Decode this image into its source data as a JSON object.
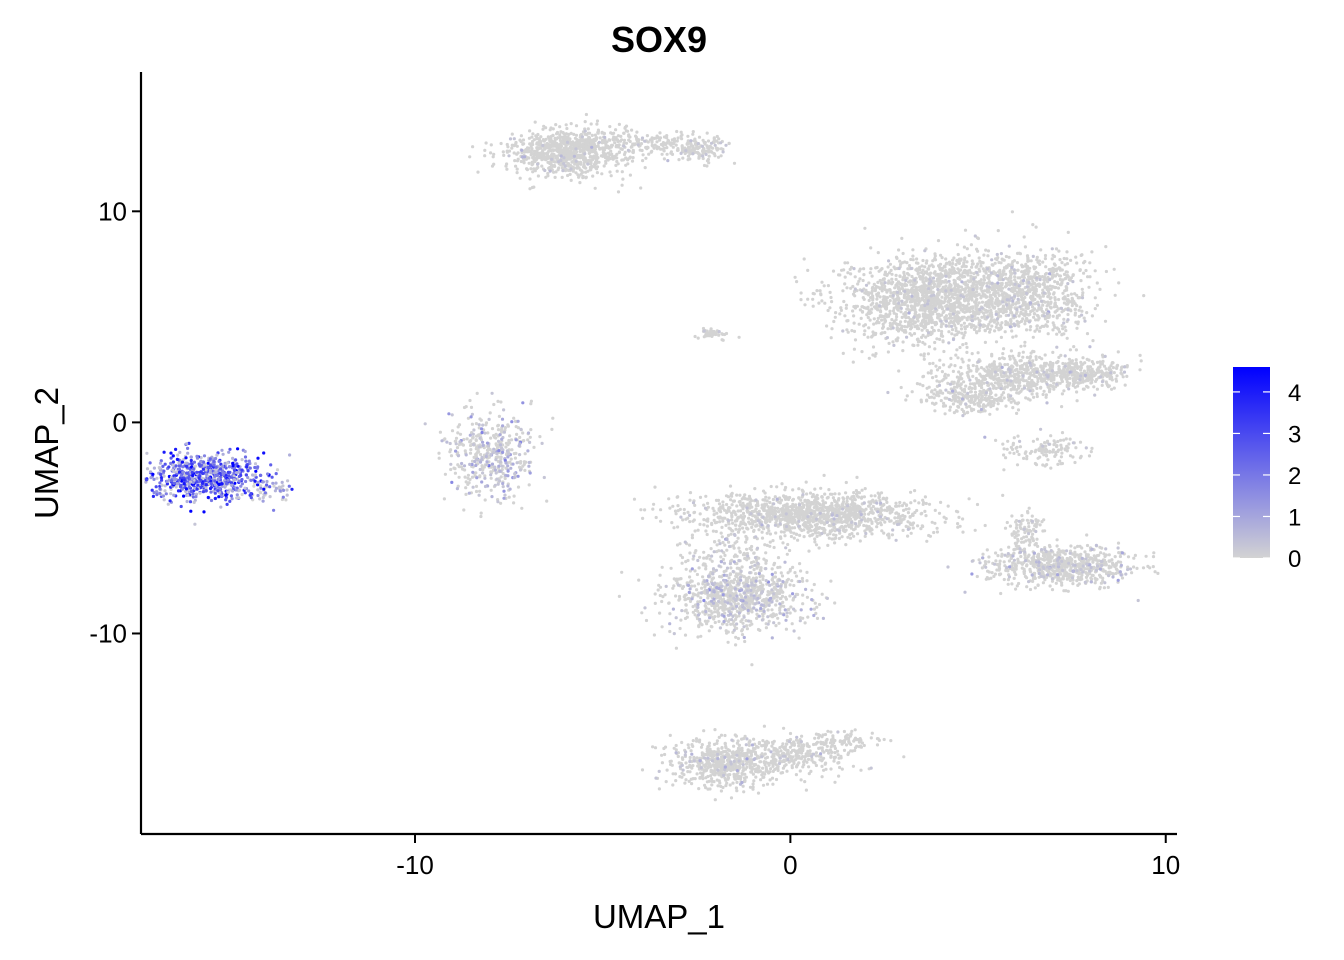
{
  "chart_data": {
    "type": "scatter",
    "title": "SOX9",
    "xlabel": "UMAP_1",
    "ylabel": "UMAP_2",
    "xlim": [
      -17.3,
      10.3
    ],
    "ylim": [
      -19.5,
      16.6
    ],
    "x_ticks": [
      -10,
      0,
      10
    ],
    "y_ticks": [
      -10,
      0,
      10
    ],
    "x_tick_labels": [
      "-10",
      "0",
      "10"
    ],
    "y_tick_labels": [
      "-10",
      "0",
      "10"
    ],
    "grid": false,
    "legend": {
      "placement": "right",
      "type": "colorbar",
      "ticks": [
        0,
        1,
        2,
        3,
        4
      ],
      "tick_labels": [
        "0",
        "1",
        "2",
        "3",
        "4"
      ],
      "min": 0,
      "max": 4.6,
      "low_color": "#d3d3d3",
      "high_color": "#0000ff"
    },
    "point_color_base": "#d3d3d3",
    "clusters": [
      {
        "cx": -15.6,
        "cy": -2.6,
        "sx": 0.75,
        "sy": 0.55,
        "n": 700,
        "expr": 2.2
      },
      {
        "cx": -14.0,
        "cy": -3.2,
        "sx": 0.4,
        "sy": 0.3,
        "n": 60,
        "expr": 1.0
      },
      {
        "cx": -8.0,
        "cy": -1.5,
        "sx": 0.6,
        "sy": 1.0,
        "n": 450,
        "expr": 0.45
      },
      {
        "cx": -5.9,
        "cy": 12.8,
        "sx": 0.8,
        "sy": 0.55,
        "n": 900,
        "expr": 0.03
      },
      {
        "cx": -3.8,
        "cy": 13.2,
        "sx": 0.9,
        "sy": 0.3,
        "n": 180,
        "expr": 0.03
      },
      {
        "cx": -2.4,
        "cy": 12.9,
        "sx": 0.35,
        "sy": 0.3,
        "n": 120,
        "expr": 0.05
      },
      {
        "cx": -2.0,
        "cy": 4.2,
        "sx": 0.25,
        "sy": 0.15,
        "n": 40,
        "expr": 0.03
      },
      {
        "cx": 3.8,
        "cy": 5.8,
        "sx": 1.2,
        "sy": 1.0,
        "n": 1600,
        "expr": 0.05
      },
      {
        "cx": 6.3,
        "cy": 6.2,
        "sx": 0.9,
        "sy": 1.0,
        "n": 800,
        "expr": 0.08
      },
      {
        "cx": 6.2,
        "cy": 2.2,
        "sx": 1.1,
        "sy": 0.5,
        "n": 600,
        "expr": 0.08
      },
      {
        "cx": 7.8,
        "cy": 2.4,
        "sx": 0.6,
        "sy": 0.3,
        "n": 200,
        "expr": 0.05
      },
      {
        "cx": 4.8,
        "cy": 1.2,
        "sx": 0.7,
        "sy": 0.4,
        "n": 250,
        "expr": 0.05
      },
      {
        "cx": 6.8,
        "cy": -1.3,
        "sx": 0.6,
        "sy": 0.35,
        "n": 120,
        "expr": 0.05
      },
      {
        "cx": 0.5,
        "cy": -4.4,
        "sx": 1.6,
        "sy": 0.55,
        "n": 1300,
        "expr": 0.05
      },
      {
        "cx": -1.4,
        "cy": -8.3,
        "sx": 0.9,
        "sy": 0.8,
        "n": 900,
        "expr": 0.3
      },
      {
        "cx": -1.6,
        "cy": -6.2,
        "sx": 0.6,
        "sy": 0.5,
        "n": 100,
        "expr": 0.2
      },
      {
        "cx": 7.2,
        "cy": -6.8,
        "sx": 1.0,
        "sy": 0.45,
        "n": 700,
        "expr": 0.2
      },
      {
        "cx": 6.3,
        "cy": -5.2,
        "sx": 0.3,
        "sy": 0.5,
        "n": 100,
        "expr": 0.1
      },
      {
        "cx": -1.8,
        "cy": -16.2,
        "sx": 0.7,
        "sy": 0.55,
        "n": 550,
        "expr": 0.12
      },
      {
        "cx": 0.0,
        "cy": -15.7,
        "sx": 0.9,
        "sy": 0.45,
        "n": 350,
        "expr": 0.06
      },
      {
        "cx": 1.4,
        "cy": -15.0,
        "sx": 0.5,
        "sy": 0.2,
        "n": 70,
        "expr": 0.05
      }
    ]
  }
}
